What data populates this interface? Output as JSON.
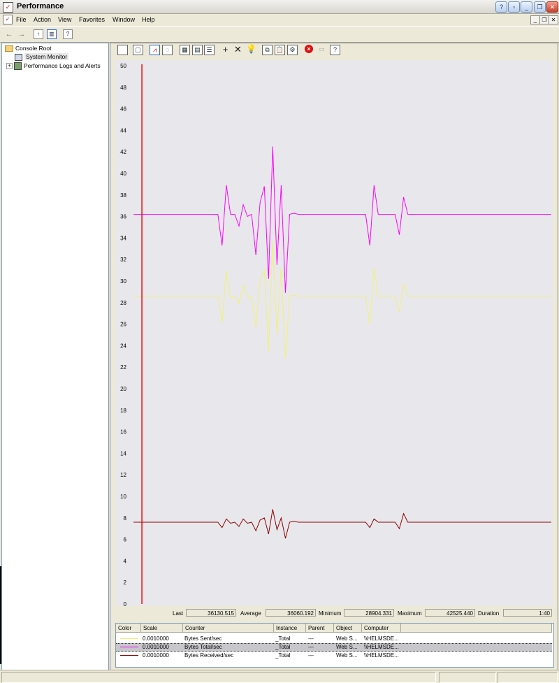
{
  "window": {
    "title": "Performance"
  },
  "menu": [
    "File",
    "Action",
    "View",
    "Favorites",
    "Window",
    "Help"
  ],
  "tree": {
    "root": "Console Root",
    "items": [
      {
        "label": "System Monitor",
        "selected": true
      },
      {
        "label": "Performance Logs and Alerts",
        "expandable": true
      }
    ]
  },
  "chart_data": {
    "type": "line",
    "ylim": [
      0,
      50
    ],
    "y_ticks": [
      0,
      2,
      4,
      6,
      8,
      10,
      12,
      14,
      16,
      18,
      20,
      22,
      24,
      26,
      28,
      30,
      32,
      34,
      36,
      38,
      40,
      42,
      44,
      46,
      48,
      50
    ],
    "time_bar_sample": 2,
    "num_samples": 100,
    "grid": false,
    "series": [
      {
        "color": "#ff00ff",
        "values": [
          36.2,
          36.2,
          36.2,
          36.2,
          36.2,
          36.2,
          36.2,
          36.2,
          36.2,
          36.2,
          36.2,
          36.2,
          36.2,
          36.2,
          36.2,
          36.2,
          36.2,
          36.2,
          36.2,
          36.2,
          36.2,
          33.3,
          38.9,
          36.2,
          36.2,
          35.1,
          37.1,
          36.0,
          36.2,
          32.4,
          37.3,
          38.8,
          30.2,
          42.5,
          31.5,
          38.9,
          28.9,
          36.2,
          36.3,
          36.2,
          36.2,
          36.2,
          36.2,
          36.2,
          36.2,
          36.2,
          36.2,
          36.2,
          36.2,
          36.2,
          36.2,
          36.2,
          36.2,
          36.2,
          36.2,
          36.2,
          33.3,
          38.9,
          36.2,
          36.2,
          36.2,
          36.2,
          36.2,
          34.3,
          37.8,
          36.2,
          36.2,
          36.2,
          36.2,
          36.2,
          36.2,
          36.2,
          36.2,
          36.2,
          36.2,
          36.2,
          36.2,
          36.2,
          36.2,
          36.2,
          36.2,
          36.2,
          36.2,
          36.2,
          36.2,
          36.2,
          36.2,
          36.2,
          36.2,
          36.2,
          36.2,
          36.2,
          36.2,
          36.2,
          36.2,
          36.2,
          36.2,
          36.2,
          36.2,
          36.2
        ]
      },
      {
        "color": "#f0f07a",
        "values": [
          28.6,
          28.6,
          28.6,
          28.6,
          28.6,
          28.6,
          28.6,
          28.6,
          28.6,
          28.6,
          28.6,
          28.6,
          28.6,
          28.6,
          28.6,
          28.6,
          28.6,
          28.6,
          28.6,
          28.6,
          28.6,
          26.1,
          31.0,
          28.4,
          28.6,
          27.9,
          29.6,
          28.5,
          28.6,
          25.7,
          30.0,
          31.1,
          23.4,
          33.8,
          25.0,
          31.2,
          22.8,
          28.6,
          28.7,
          28.6,
          28.6,
          28.6,
          28.6,
          28.6,
          28.6,
          28.6,
          28.6,
          28.6,
          28.6,
          28.6,
          28.6,
          28.6,
          28.6,
          28.6,
          28.6,
          28.6,
          26.0,
          31.2,
          28.6,
          28.6,
          28.6,
          28.6,
          28.6,
          27.1,
          29.7,
          28.6,
          28.6,
          28.6,
          28.6,
          28.6,
          28.6,
          28.6,
          28.6,
          28.6,
          28.6,
          28.6,
          28.6,
          28.6,
          28.6,
          28.6,
          28.6,
          28.6,
          28.6,
          28.6,
          28.6,
          28.6,
          28.6,
          28.6,
          28.6,
          28.6,
          28.6,
          28.6,
          28.6,
          28.6,
          28.6,
          28.6,
          28.6,
          28.6,
          28.6,
          28.6
        ]
      },
      {
        "color": "#8b0000",
        "values": [
          7.6,
          7.6,
          7.6,
          7.6,
          7.6,
          7.6,
          7.6,
          7.6,
          7.6,
          7.6,
          7.6,
          7.6,
          7.6,
          7.6,
          7.6,
          7.6,
          7.6,
          7.6,
          7.6,
          7.6,
          7.6,
          7.1,
          7.9,
          7.5,
          7.6,
          7.2,
          7.9,
          7.5,
          7.6,
          6.8,
          7.8,
          8.0,
          6.5,
          8.8,
          6.9,
          8.0,
          6.1,
          7.6,
          7.7,
          7.6,
          7.6,
          7.6,
          7.6,
          7.6,
          7.6,
          7.6,
          7.6,
          7.6,
          7.6,
          7.6,
          7.6,
          7.6,
          7.6,
          7.6,
          7.6,
          7.6,
          7.1,
          7.9,
          7.6,
          7.6,
          7.6,
          7.6,
          7.6,
          7.0,
          8.4,
          7.6,
          7.6,
          7.6,
          7.6,
          7.6,
          7.6,
          7.6,
          7.6,
          7.6,
          7.6,
          7.6,
          7.6,
          7.6,
          7.6,
          7.6,
          7.6,
          7.6,
          7.6,
          7.6,
          7.6,
          7.6,
          7.6,
          7.6,
          7.6,
          7.6,
          7.6,
          7.6,
          7.6,
          7.6,
          7.6,
          7.6,
          7.6,
          7.6,
          7.6,
          7.6
        ]
      }
    ]
  },
  "stats": {
    "last_label": "Last",
    "last": "36130.515",
    "avg_label": "Average",
    "avg": "36060.192",
    "min_label": "Minimum",
    "min": "28904.331",
    "max_label": "Maximum",
    "max": "42525.440",
    "dur_label": "Duration",
    "dur": "1:40"
  },
  "legend": {
    "headers": [
      "Color",
      "Scale",
      "Counter",
      "Instance",
      "Parent",
      "Object",
      "Computer"
    ],
    "rows": [
      {
        "color": "#f0f07a",
        "scale": "0.0010000",
        "counter": "Bytes Sent/sec",
        "instance": "_Total",
        "parent": "---",
        "object": "Web S...",
        "computer": "\\\\HELMSDE..."
      },
      {
        "color": "#ff00ff",
        "scale": "0.0010000",
        "counter": "Bytes Total/sec",
        "instance": "_Total",
        "parent": "---",
        "object": "Web S...",
        "computer": "\\\\HELMSDE...",
        "selected": true
      },
      {
        "color": "#8b0000",
        "scale": "0.0010000",
        "counter": "Bytes Received/sec",
        "instance": "_Total",
        "parent": "---",
        "object": "Web S...",
        "computer": "\\\\HELMSDE..."
      }
    ]
  }
}
